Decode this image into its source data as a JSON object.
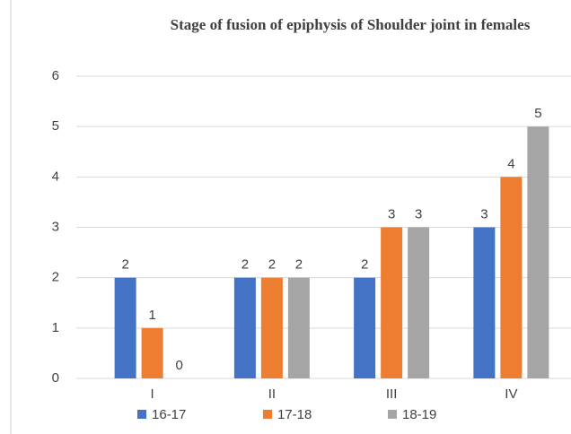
{
  "chart_data": {
    "type": "bar",
    "title": "Stage of fusion of epiphysis of Shoulder joint in females",
    "categories": [
      "I",
      "II",
      "III",
      "IV"
    ],
    "series": [
      {
        "name": "16-17",
        "color": "#4472c4",
        "values": [
          2,
          2,
          2,
          3
        ]
      },
      {
        "name": "17-18",
        "color": "#ed7d31",
        "values": [
          1,
          2,
          3,
          4
        ]
      },
      {
        "name": "18-19",
        "color": "#a5a5a5",
        "values": [
          0,
          2,
          3,
          5
        ]
      }
    ],
    "ylim": [
      0,
      6
    ],
    "yticks": [
      0,
      1,
      2,
      3,
      4,
      5,
      6
    ],
    "grid": true,
    "legend": "bottom"
  }
}
